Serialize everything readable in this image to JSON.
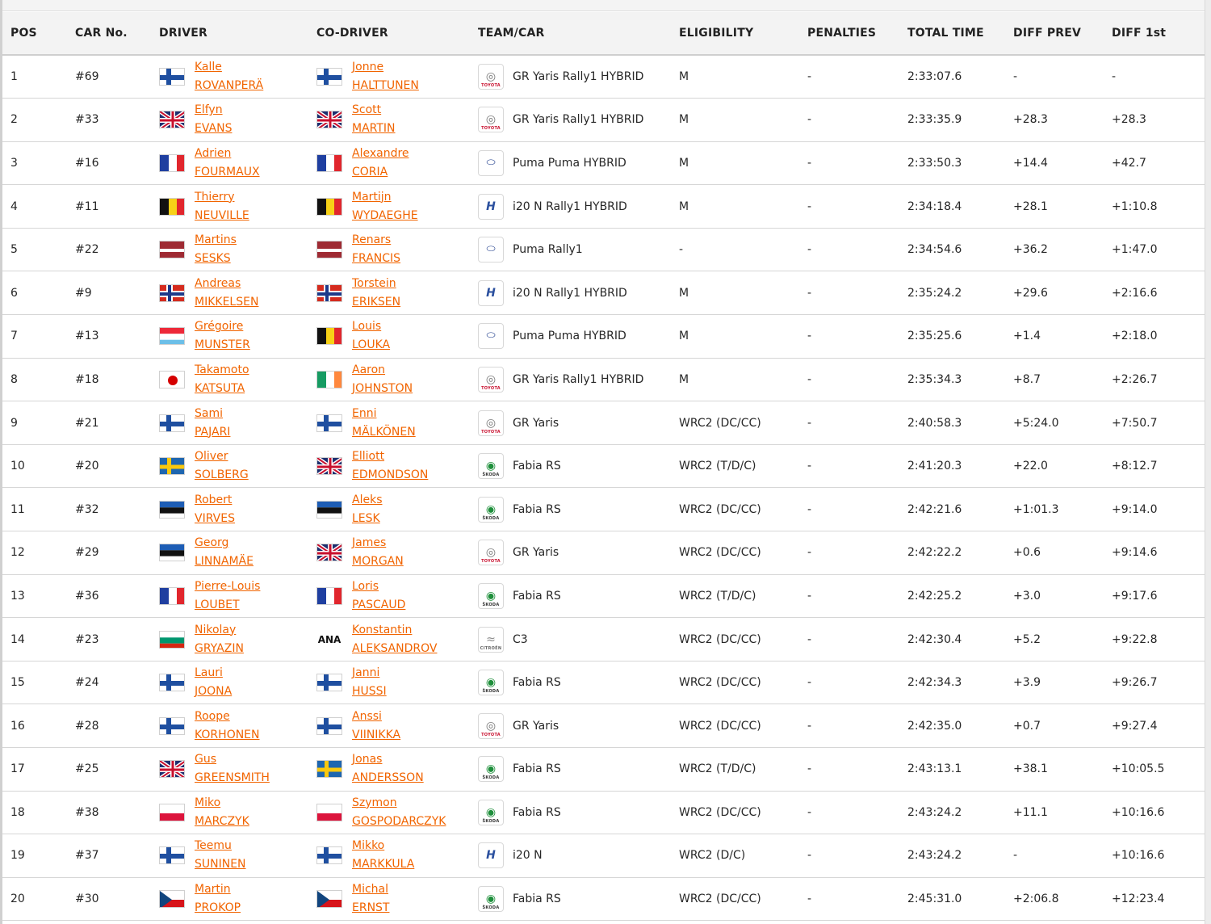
{
  "columns": {
    "pos": "POS",
    "car": "CAR No.",
    "driver": "DRIVER",
    "codriver": "CO-DRIVER",
    "team": "TEAM/CAR",
    "eligibility": "ELIGIBILITY",
    "penalties": "PENALTIES",
    "total_time": "TOTAL TIME",
    "diff_prev": "DIFF PREV",
    "diff_first": "DIFF 1st"
  },
  "accent_color": "#f16400",
  "rows": [
    {
      "pos": "1",
      "car": "#69",
      "driver_first": "Kalle",
      "driver_last": "ROVANPERÄ",
      "driver_flag": "finland",
      "codriver_first": "Jonne",
      "codriver_last": "HALTTUNEN",
      "codriver_flag": "finland",
      "brand": "toyota",
      "car_name": "GR Yaris Rally1 HYBRID",
      "eligibility": "M",
      "penalties": "-",
      "total_time": "2:33:07.6",
      "diff_prev": "-",
      "diff_first": "-"
    },
    {
      "pos": "2",
      "car": "#33",
      "driver_first": "Elfyn",
      "driver_last": "EVANS",
      "driver_flag": "uk",
      "codriver_first": "Scott",
      "codriver_last": "MARTIN",
      "codriver_flag": "uk",
      "brand": "toyota",
      "car_name": "GR Yaris Rally1 HYBRID",
      "eligibility": "M",
      "penalties": "-",
      "total_time": "2:33:35.9",
      "diff_prev": "+28.3",
      "diff_first": "+28.3"
    },
    {
      "pos": "3",
      "car": "#16",
      "driver_first": "Adrien",
      "driver_last": "FOURMAUX",
      "driver_flag": "france",
      "codriver_first": "Alexandre",
      "codriver_last": "CORIA",
      "codriver_flag": "france",
      "brand": "ford",
      "car_name": "Puma Puma HYBRID",
      "eligibility": "M",
      "penalties": "-",
      "total_time": "2:33:50.3",
      "diff_prev": "+14.4",
      "diff_first": "+42.7"
    },
    {
      "pos": "4",
      "car": "#11",
      "driver_first": "Thierry",
      "driver_last": "NEUVILLE",
      "driver_flag": "belgium",
      "codriver_first": "Martijn",
      "codriver_last": "WYDAEGHE",
      "codriver_flag": "belgium",
      "brand": "hyundai",
      "car_name": "i20 N Rally1 HYBRID",
      "eligibility": "M",
      "penalties": "-",
      "total_time": "2:34:18.4",
      "diff_prev": "+28.1",
      "diff_first": "+1:10.8"
    },
    {
      "pos": "5",
      "car": "#22",
      "driver_first": "Martins",
      "driver_last": "SESKS",
      "driver_flag": "latvia",
      "codriver_first": "Renars",
      "codriver_last": "FRANCIS",
      "codriver_flag": "latvia",
      "brand": "ford",
      "car_name": "Puma Rally1",
      "eligibility": "-",
      "penalties": "-",
      "total_time": "2:34:54.6",
      "diff_prev": "+36.2",
      "diff_first": "+1:47.0"
    },
    {
      "pos": "6",
      "car": "#9",
      "driver_first": "Andreas",
      "driver_last": "MIKKELSEN",
      "driver_flag": "norway",
      "codriver_first": "Torstein",
      "codriver_last": "ERIKSEN",
      "codriver_flag": "norway",
      "brand": "hyundai",
      "car_name": "i20 N Rally1 HYBRID",
      "eligibility": "M",
      "penalties": "-",
      "total_time": "2:35:24.2",
      "diff_prev": "+29.6",
      "diff_first": "+2:16.6"
    },
    {
      "pos": "7",
      "car": "#13",
      "driver_first": "Grégoire",
      "driver_last": "MUNSTER",
      "driver_flag": "luxembourg",
      "codriver_first": "Louis",
      "codriver_last": "LOUKA",
      "codriver_flag": "belgium",
      "brand": "ford",
      "car_name": "Puma Puma HYBRID",
      "eligibility": "M",
      "penalties": "-",
      "total_time": "2:35:25.6",
      "diff_prev": "+1.4",
      "diff_first": "+2:18.0"
    },
    {
      "pos": "8",
      "car": "#18",
      "driver_first": "Takamoto",
      "driver_last": "KATSUTA",
      "driver_flag": "japan",
      "codriver_first": "Aaron",
      "codriver_last": "JOHNSTON",
      "codriver_flag": "ireland",
      "brand": "toyota",
      "car_name": "GR Yaris Rally1 HYBRID",
      "eligibility": "M",
      "penalties": "-",
      "total_time": "2:35:34.3",
      "diff_prev": "+8.7",
      "diff_first": "+2:26.7"
    },
    {
      "pos": "9",
      "car": "#21",
      "driver_first": "Sami",
      "driver_last": "PAJARI",
      "driver_flag": "finland",
      "codriver_first": "Enni",
      "codriver_last": "MÄLKÖNEN",
      "codriver_flag": "finland",
      "brand": "toyota",
      "car_name": "GR Yaris",
      "eligibility": "WRC2 (DC/CC)",
      "penalties": "-",
      "total_time": "2:40:58.3",
      "diff_prev": "+5:24.0",
      "diff_first": "+7:50.7"
    },
    {
      "pos": "10",
      "car": "#20",
      "driver_first": "Oliver",
      "driver_last": "SOLBERG",
      "driver_flag": "sweden",
      "codriver_first": "Elliott",
      "codriver_last": "EDMONDSON",
      "codriver_flag": "uk",
      "brand": "skoda",
      "car_name": "Fabia RS",
      "eligibility": "WRC2 (T/D/C)",
      "penalties": "-",
      "total_time": "2:41:20.3",
      "diff_prev": "+22.0",
      "diff_first": "+8:12.7"
    },
    {
      "pos": "11",
      "car": "#32",
      "driver_first": "Robert",
      "driver_last": "VIRVES",
      "driver_flag": "estonia",
      "codriver_first": "Aleks",
      "codriver_last": "LESK",
      "codriver_flag": "estonia",
      "brand": "skoda",
      "car_name": "Fabia RS",
      "eligibility": "WRC2 (DC/CC)",
      "penalties": "-",
      "total_time": "2:42:21.6",
      "diff_prev": "+1:01.3",
      "diff_first": "+9:14.0"
    },
    {
      "pos": "12",
      "car": "#29",
      "driver_first": "Georg",
      "driver_last": "LINNAMÄE",
      "driver_flag": "estonia",
      "codriver_first": "James",
      "codriver_last": "MORGAN",
      "codriver_flag": "uk",
      "brand": "toyota",
      "car_name": "GR Yaris",
      "eligibility": "WRC2 (DC/CC)",
      "penalties": "-",
      "total_time": "2:42:22.2",
      "diff_prev": "+0.6",
      "diff_first": "+9:14.6"
    },
    {
      "pos": "13",
      "car": "#36",
      "driver_first": "Pierre-Louis",
      "driver_last": "LOUBET",
      "driver_flag": "france",
      "codriver_first": "Loris",
      "codriver_last": "PASCAUD",
      "codriver_flag": "france",
      "brand": "skoda",
      "car_name": "Fabia RS",
      "eligibility": "WRC2 (T/D/C)",
      "penalties": "-",
      "total_time": "2:42:25.2",
      "diff_prev": "+3.0",
      "diff_first": "+9:17.6"
    },
    {
      "pos": "14",
      "car": "#23",
      "driver_first": "Nikolay",
      "driver_last": "GRYAZIN",
      "driver_flag": "bulgaria",
      "codriver_first": "Konstantin",
      "codriver_last": "ALEKSANDROV",
      "codriver_flag": "ana",
      "codriver_flag_text": "ANA",
      "brand": "citroen",
      "car_name": "C3",
      "eligibility": "WRC2 (DC/CC)",
      "penalties": "-",
      "total_time": "2:42:30.4",
      "diff_prev": "+5.2",
      "diff_first": "+9:22.8"
    },
    {
      "pos": "15",
      "car": "#24",
      "driver_first": "Lauri",
      "driver_last": "JOONA",
      "driver_flag": "finland",
      "codriver_first": "Janni",
      "codriver_last": "HUSSI",
      "codriver_flag": "finland",
      "brand": "skoda",
      "car_name": "Fabia RS",
      "eligibility": "WRC2 (DC/CC)",
      "penalties": "-",
      "total_time": "2:42:34.3",
      "diff_prev": "+3.9",
      "diff_first": "+9:26.7"
    },
    {
      "pos": "16",
      "car": "#28",
      "driver_first": "Roope",
      "driver_last": "KORHONEN",
      "driver_flag": "finland",
      "codriver_first": "Anssi",
      "codriver_last": "VIINIKKA",
      "codriver_flag": "finland",
      "brand": "toyota",
      "car_name": "GR Yaris",
      "eligibility": "WRC2 (DC/CC)",
      "penalties": "-",
      "total_time": "2:42:35.0",
      "diff_prev": "+0.7",
      "diff_first": "+9:27.4"
    },
    {
      "pos": "17",
      "car": "#25",
      "driver_first": "Gus",
      "driver_last": "GREENSMITH",
      "driver_flag": "uk",
      "codriver_first": "Jonas",
      "codriver_last": "ANDERSSON",
      "codriver_flag": "sweden",
      "brand": "skoda",
      "car_name": "Fabia RS",
      "eligibility": "WRC2 (T/D/C)",
      "penalties": "-",
      "total_time": "2:43:13.1",
      "diff_prev": "+38.1",
      "diff_first": "+10:05.5"
    },
    {
      "pos": "18",
      "car": "#38",
      "driver_first": "Miko",
      "driver_last": "MARCZYK",
      "driver_flag": "poland",
      "codriver_first": "Szymon",
      "codriver_last": "GOSPODARCZYK",
      "codriver_flag": "poland",
      "brand": "skoda",
      "car_name": "Fabia RS",
      "eligibility": "WRC2 (DC/CC)",
      "penalties": "-",
      "total_time": "2:43:24.2",
      "diff_prev": "+11.1",
      "diff_first": "+10:16.6"
    },
    {
      "pos": "19",
      "car": "#37",
      "driver_first": "Teemu",
      "driver_last": "SUNINEN",
      "driver_flag": "finland",
      "codriver_first": "Mikko",
      "codriver_last": "MARKKULA",
      "codriver_flag": "finland",
      "brand": "hyundai",
      "car_name": "i20 N",
      "eligibility": "WRC2 (D/C)",
      "penalties": "-",
      "total_time": "2:43:24.2",
      "diff_prev": "-",
      "diff_first": "+10:16.6"
    },
    {
      "pos": "20",
      "car": "#30",
      "driver_first": "Martin",
      "driver_last": "PROKOP",
      "driver_flag": "czech",
      "codriver_first": "Michal",
      "codriver_last": "ERNST",
      "codriver_flag": "czech",
      "brand": "skoda",
      "car_name": "Fabia RS",
      "eligibility": "WRC2 (DC/CC)",
      "penalties": "-",
      "total_time": "2:45:31.0",
      "diff_prev": "+2:06.8",
      "diff_first": "+12:23.4"
    }
  ],
  "brands": {
    "toyota": {
      "label": "TOYOTA",
      "glyph": "◎"
    },
    "ford": {
      "label": "",
      "glyph": "⬭"
    },
    "hyundai": {
      "label": "",
      "glyph": "H"
    },
    "skoda": {
      "label": "ŠKODA",
      "glyph": "◉"
    },
    "citroen": {
      "label": "CITROËN",
      "glyph": "≈"
    }
  }
}
